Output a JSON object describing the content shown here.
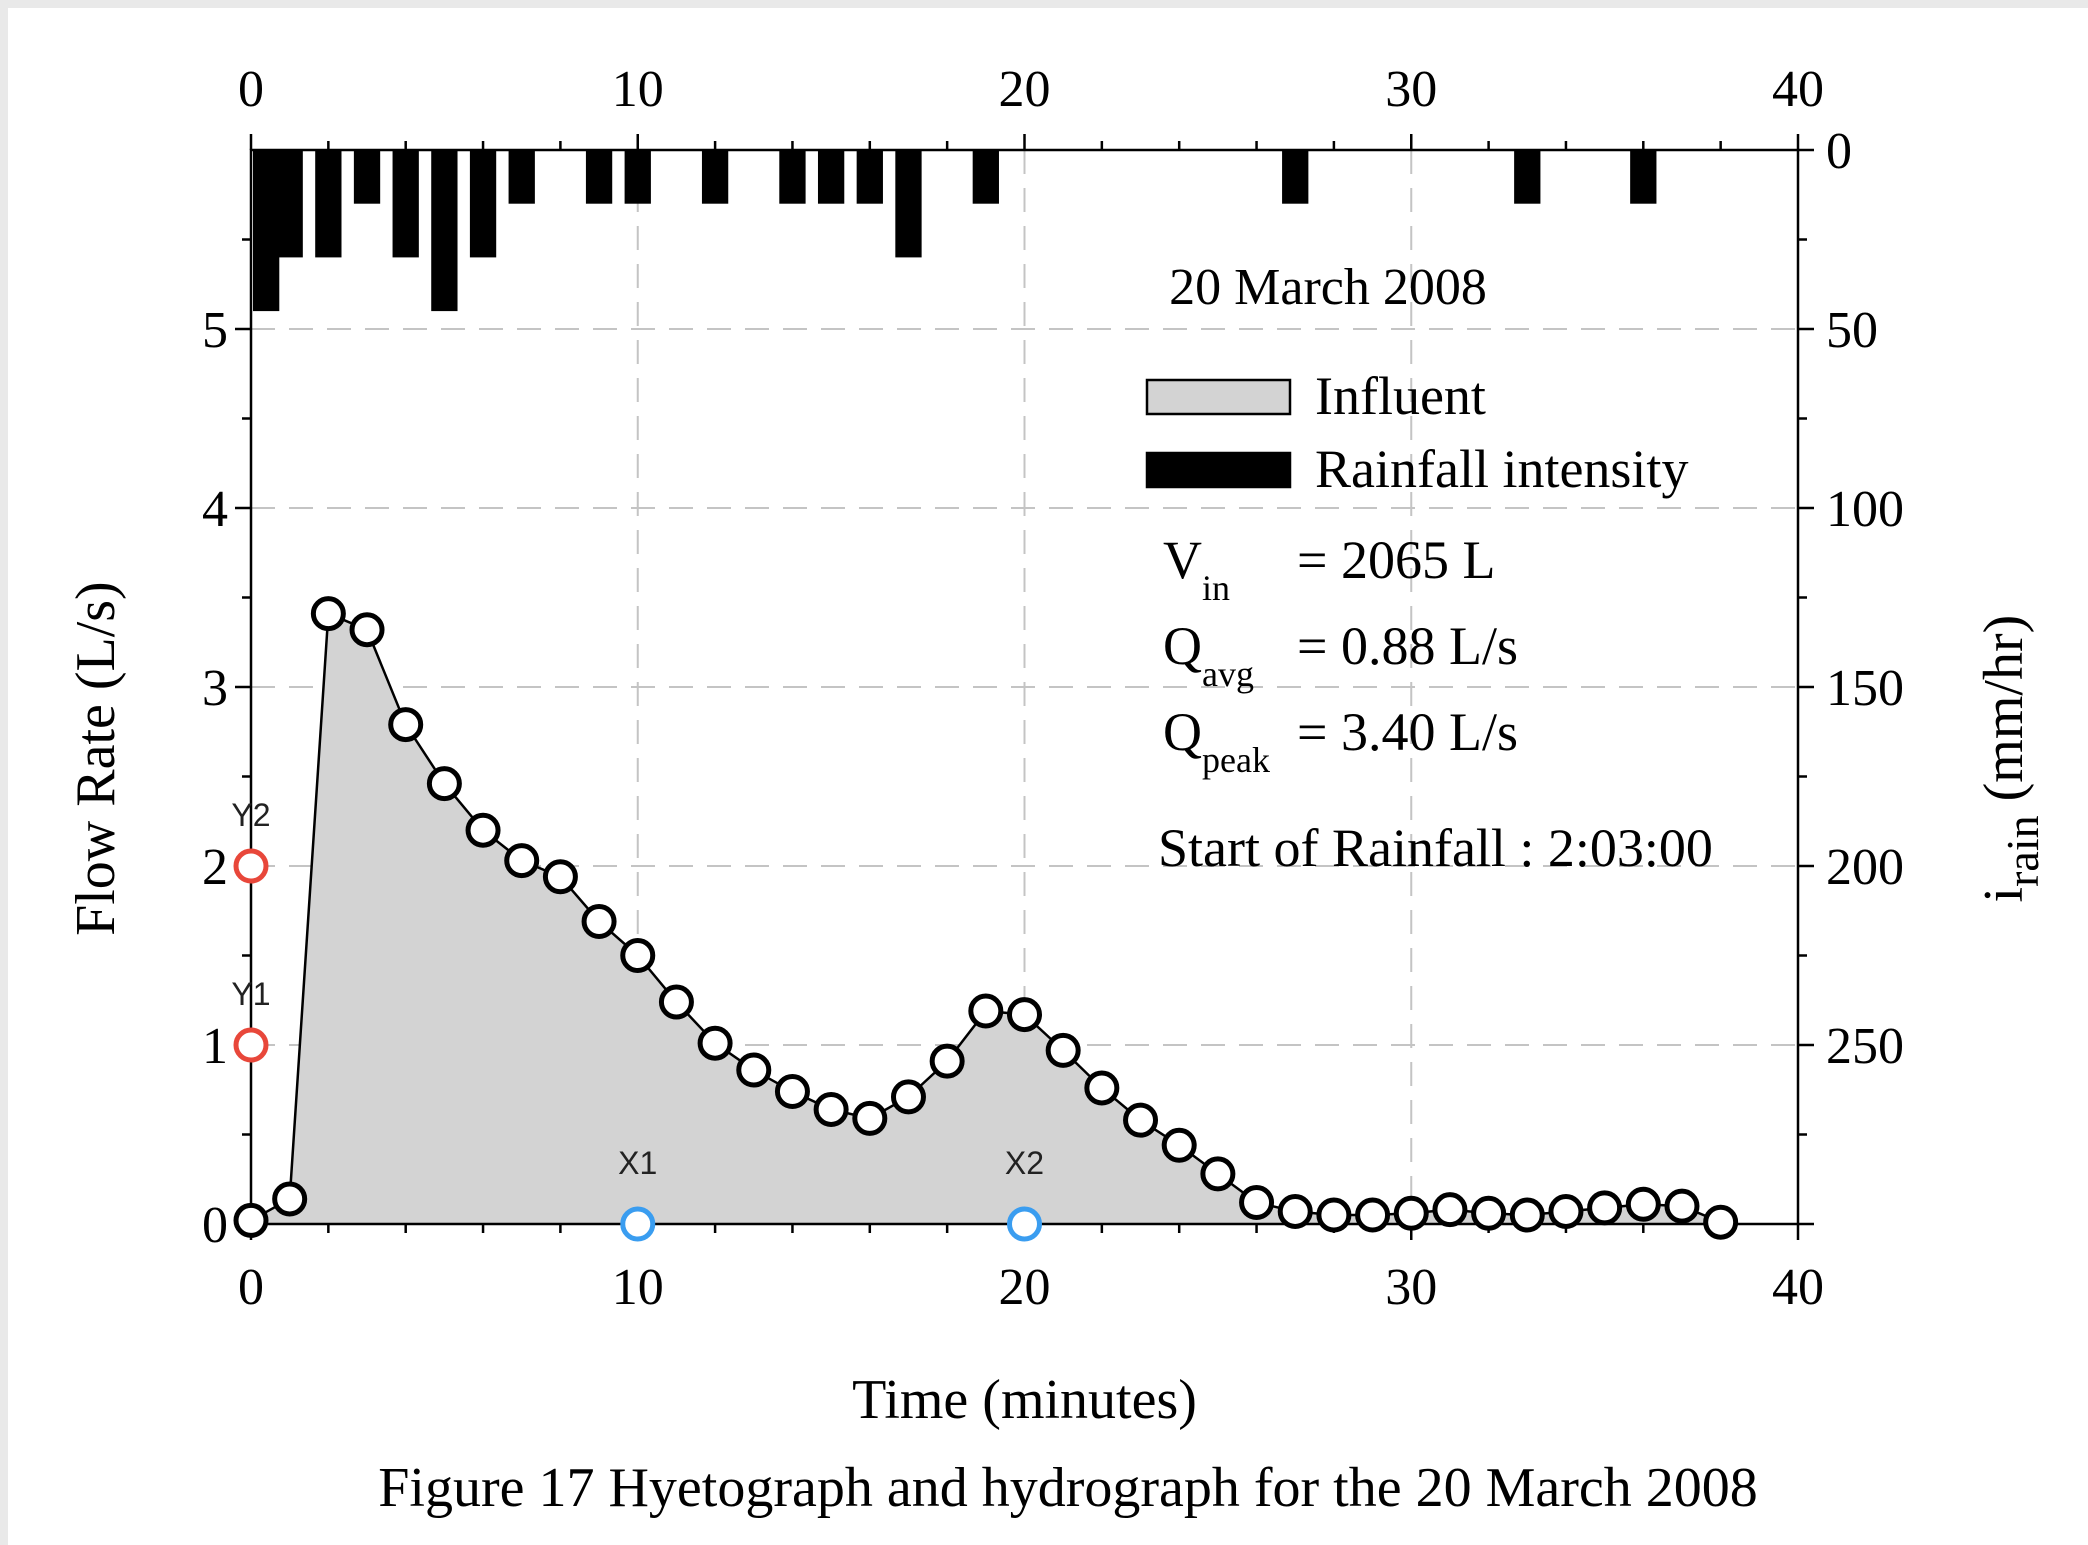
{
  "chart_data": {
    "type": "line",
    "title": "20 March 2008",
    "xlabel": "Time (minutes)",
    "ylabel": "Flow Rate (L/s)",
    "y2label_base": "i",
    "y2label_sub": "rain",
    "y2label_unit": "(mm/hr)",
    "xlim": [
      0,
      40
    ],
    "ylim": [
      0,
      6
    ],
    "y2lim": [
      0,
      300
    ],
    "x_ticks": [
      "0",
      "10",
      "20",
      "30",
      "40"
    ],
    "y_ticks": [
      "0",
      "1",
      "2",
      "3",
      "4",
      "5"
    ],
    "y2_ticks": [
      "0",
      "50",
      "100",
      "150",
      "200",
      "250"
    ],
    "grid": true,
    "legend_position": "top-right",
    "legend": [
      {
        "name": "Influent",
        "color": "#d3d3d3"
      },
      {
        "name": "Rainfall intensity",
        "color": "#000000"
      }
    ],
    "stats": [
      {
        "base": "V",
        "sub": "in",
        "value": "= 2065 L"
      },
      {
        "base": "Q",
        "sub": "avg",
        "value": "= 0.88 L/s"
      },
      {
        "base": "Q",
        "sub": "peak",
        "value": "= 3.40 L/s"
      }
    ],
    "note": "Start of Rainfall : 2:03:00",
    "series": [
      {
        "name": "Influent",
        "type": "area",
        "x": [
          0,
          1,
          2,
          3,
          4,
          5,
          6,
          7,
          8,
          9,
          10,
          11,
          12,
          13,
          14,
          15,
          16,
          17,
          18,
          19,
          20,
          21,
          22,
          23,
          24,
          25,
          26,
          27,
          28,
          29,
          30,
          31,
          32,
          33,
          34,
          35,
          36,
          37,
          38
        ],
        "values": [
          0.02,
          0.14,
          3.41,
          3.32,
          2.79,
          2.46,
          2.2,
          2.03,
          1.94,
          1.69,
          1.5,
          1.24,
          1.01,
          0.86,
          0.74,
          0.64,
          0.59,
          0.71,
          0.91,
          1.19,
          1.17,
          0.97,
          0.76,
          0.58,
          0.44,
          0.28,
          0.12,
          0.07,
          0.05,
          0.05,
          0.06,
          0.08,
          0.06,
          0.05,
          0.07,
          0.09,
          0.11,
          0.1,
          0.01
        ]
      },
      {
        "name": "Rainfall intensity",
        "type": "bar",
        "axis": "right",
        "x": [
          0,
          1,
          2,
          3,
          4,
          5,
          6,
          7,
          9,
          10,
          12,
          14,
          15,
          16,
          17,
          19,
          27,
          33,
          36
        ],
        "values": [
          45,
          30,
          30,
          15,
          30,
          45,
          30,
          15,
          15,
          15,
          15,
          15,
          15,
          15,
          30,
          15,
          15,
          15,
          15
        ]
      }
    ],
    "markers": [
      {
        "label": "Y2",
        "axis": "y",
        "value": 2,
        "color": "#e8473a"
      },
      {
        "label": "Y1",
        "axis": "y",
        "value": 1,
        "color": "#e8473a"
      },
      {
        "label": "X1",
        "axis": "x",
        "value": 10,
        "color": "#3a9df0"
      },
      {
        "label": "X2",
        "axis": "x",
        "value": 20,
        "color": "#3a9df0"
      }
    ]
  },
  "caption": "Figure 17 Hyetograph and hydrograph for the 20 March 2008"
}
